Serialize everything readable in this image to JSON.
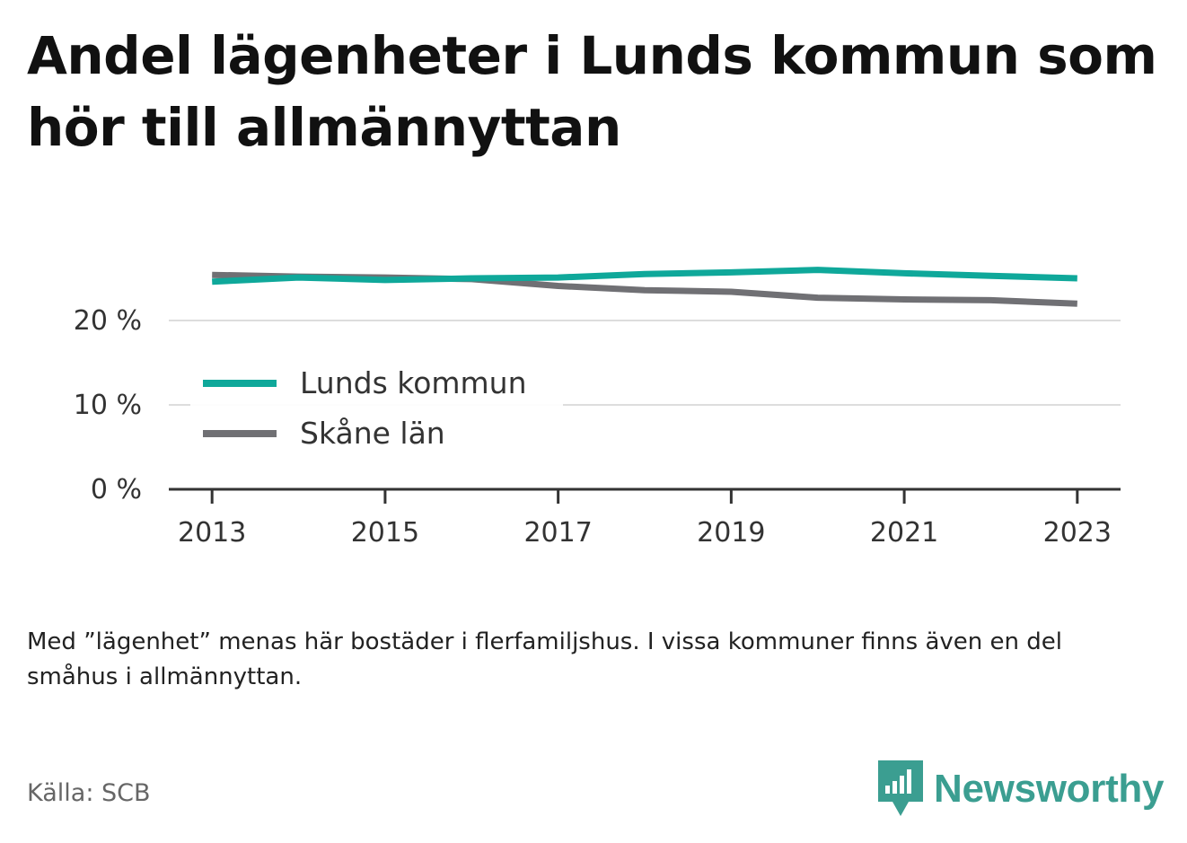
{
  "title": "Andel lägenheter i Lunds kommun som hör till allmännyttan",
  "note": "Med ”lägenhet” menas här bostäder i flerfamiljshus. I vissa kommuner finns även en del småhus i allmännyttan.",
  "source": "Källa: SCB",
  "logo": {
    "name": "Newsworthy",
    "color": "#3b9e91"
  },
  "chart_data": {
    "type": "line",
    "x": [
      2013,
      2014,
      2015,
      2016,
      2017,
      2018,
      2019,
      2020,
      2021,
      2022,
      2023
    ],
    "x_ticks": [
      "2013",
      "2015",
      "2017",
      "2019",
      "2021",
      "2023"
    ],
    "y_ticks": [
      {
        "value": 0,
        "label": "0 %"
      },
      {
        "value": 10,
        "label": "10 %"
      },
      {
        "value": 20,
        "label": "20 %"
      }
    ],
    "ylim": [
      0,
      25
    ],
    "xlim": [
      2012.5,
      2023.5
    ],
    "grid": true,
    "legend_position": "bottom-left",
    "series": [
      {
        "name": "Lunds kommun",
        "color": "#0fa89a",
        "values": [
          24.6,
          25.1,
          24.8,
          25.0,
          25.1,
          25.5,
          25.7,
          26.0,
          25.6,
          25.3,
          25.0
        ]
      },
      {
        "name": "Skåne län",
        "color": "#707074",
        "values": [
          25.4,
          25.2,
          25.1,
          24.9,
          24.1,
          23.6,
          23.4,
          22.7,
          22.5,
          22.4,
          22.0
        ]
      }
    ]
  }
}
